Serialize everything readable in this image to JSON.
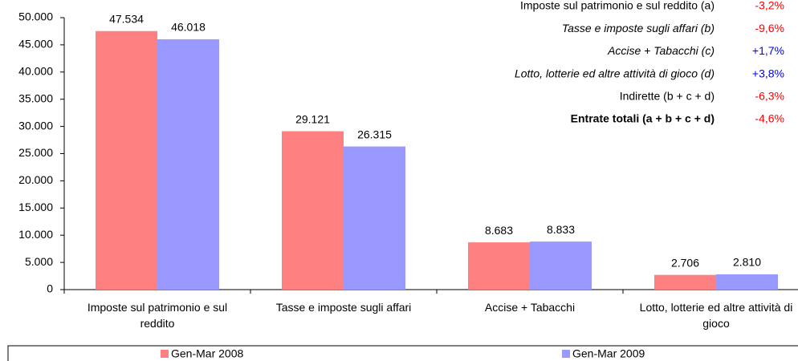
{
  "chart_data": {
    "type": "bar",
    "categories": [
      "Imposte sul patrimonio e sul reddito",
      "Tasse e imposte sugli affari",
      "Accise + Tabacchi",
      "Lotto, lotterie ed altre attività di gioco"
    ],
    "series": [
      {
        "name": "Gen-Mar 2008",
        "color": "#ff8080",
        "values": [
          47534,
          29121,
          8683,
          2706
        ],
        "value_labels": [
          "47.534",
          "29.121",
          "8.683",
          "2.706"
        ]
      },
      {
        "name": "Gen-Mar 2009",
        "color": "#9999ff",
        "values": [
          46018,
          26315,
          8833,
          2810
        ],
        "value_labels": [
          "46.018",
          "26.315",
          "8.833",
          "2.810"
        ]
      }
    ],
    "ylim": [
      0,
      50000
    ],
    "yticks": [
      0,
      {
        "value": 5000,
        "label": "5.000"
      },
      {
        "value": 10000,
        "label": "10.000"
      },
      {
        "value": 15000,
        "label": "15.000"
      },
      {
        "value": 20000,
        "label": "20.000"
      },
      {
        "value": 25000,
        "label": "25.000"
      },
      {
        "value": 30000,
        "label": "30.000"
      },
      {
        "value": 35000,
        "label": "35.000"
      },
      {
        "value": 40000,
        "label": "40.000"
      },
      {
        "value": 45000,
        "label": "45.000"
      },
      {
        "value": 50000,
        "label": "50.000"
      }
    ],
    "grid": false,
    "legend": "bottom",
    "annotations": [
      {
        "label": "Imposte sul patrimonio e sul reddito (a)",
        "change": "-3,2%",
        "color": "#ff0000",
        "style": "normal"
      },
      {
        "label": "Tasse e imposte sugli affari (b)",
        "change": "-9,6%",
        "color": "#ff0000",
        "style": "italic"
      },
      {
        "label": "Accise + Tabacchi (c)",
        "change": "+1,7%",
        "color": "#0000ff",
        "style": "italic"
      },
      {
        "label": "Lotto, lotterie ed altre attività di gioco (d)",
        "change": "+3,8%",
        "color": "#0000ff",
        "style": "italic"
      },
      {
        "label": "Indirette (b + c + d)",
        "change": "-6,3%",
        "color": "#ff0000",
        "style": "normal"
      },
      {
        "label": "Entrate totali (a + b + c + d)",
        "change": "-4,6%",
        "color": "#ff0000",
        "style": "bold"
      }
    ]
  }
}
